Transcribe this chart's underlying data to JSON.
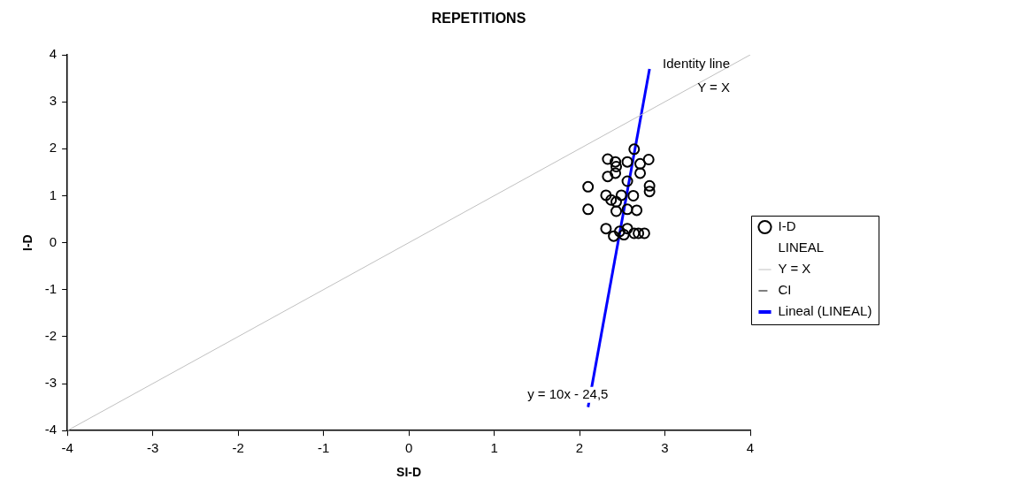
{
  "chart_data": {
    "type": "scatter",
    "title": "REPETITIONS",
    "xlabel": "SI-D",
    "ylabel": "I-D",
    "xlim": [
      -4,
      4
    ],
    "ylim": [
      -4,
      4
    ],
    "xticks": [
      -4,
      -3,
      -2,
      -1,
      0,
      1,
      2,
      3,
      4
    ],
    "yticks": [
      -4,
      -3,
      -2,
      -1,
      0,
      1,
      2,
      3,
      4
    ],
    "grid": false,
    "legend": "right",
    "annotations": [
      "Identity line",
      "Y = X",
      "y = 10x - 24,5"
    ],
    "series": [
      {
        "name": "I-D",
        "type": "scatter",
        "color": "#000000",
        "marker": "circle",
        "x": [
          2.33,
          2.64,
          2.81,
          2.42,
          2.43,
          2.56,
          2.71,
          2.33,
          2.42,
          2.71,
          2.56,
          2.1,
          2.82,
          2.82,
          2.31,
          2.37,
          2.49,
          2.63,
          2.43,
          2.1,
          2.43,
          2.67,
          2.56,
          2.31,
          2.4,
          2.56,
          2.52,
          2.64,
          2.76,
          2.69,
          2.47
        ],
        "values": [
          1.78,
          1.99,
          1.77,
          1.72,
          1.62,
          1.72,
          1.68,
          1.41,
          1.48,
          1.48,
          1.31,
          1.19,
          1.21,
          1.09,
          1.01,
          0.91,
          1.01,
          1.0,
          0.87,
          0.71,
          0.67,
          0.69,
          0.71,
          0.3,
          0.14,
          0.3,
          0.17,
          0.2,
          0.2,
          0.2,
          0.24
        ]
      },
      {
        "name": "LINEAL",
        "type": "scatter",
        "marker": "none"
      },
      {
        "name": "Y = X",
        "type": "line",
        "color": "#c0c0c0",
        "line_style": "solid",
        "x": [
          -4,
          4
        ],
        "values": [
          -4,
          4
        ]
      },
      {
        "name": "CI",
        "type": "line",
        "color": "#000000",
        "line_style": "dashed"
      },
      {
        "name": "Lineal (LINEAL)",
        "type": "line",
        "color": "#0000ff",
        "line_style": "solid",
        "x": [
          2.1,
          2.82
        ],
        "values": [
          -3.5,
          3.7
        ]
      }
    ]
  }
}
